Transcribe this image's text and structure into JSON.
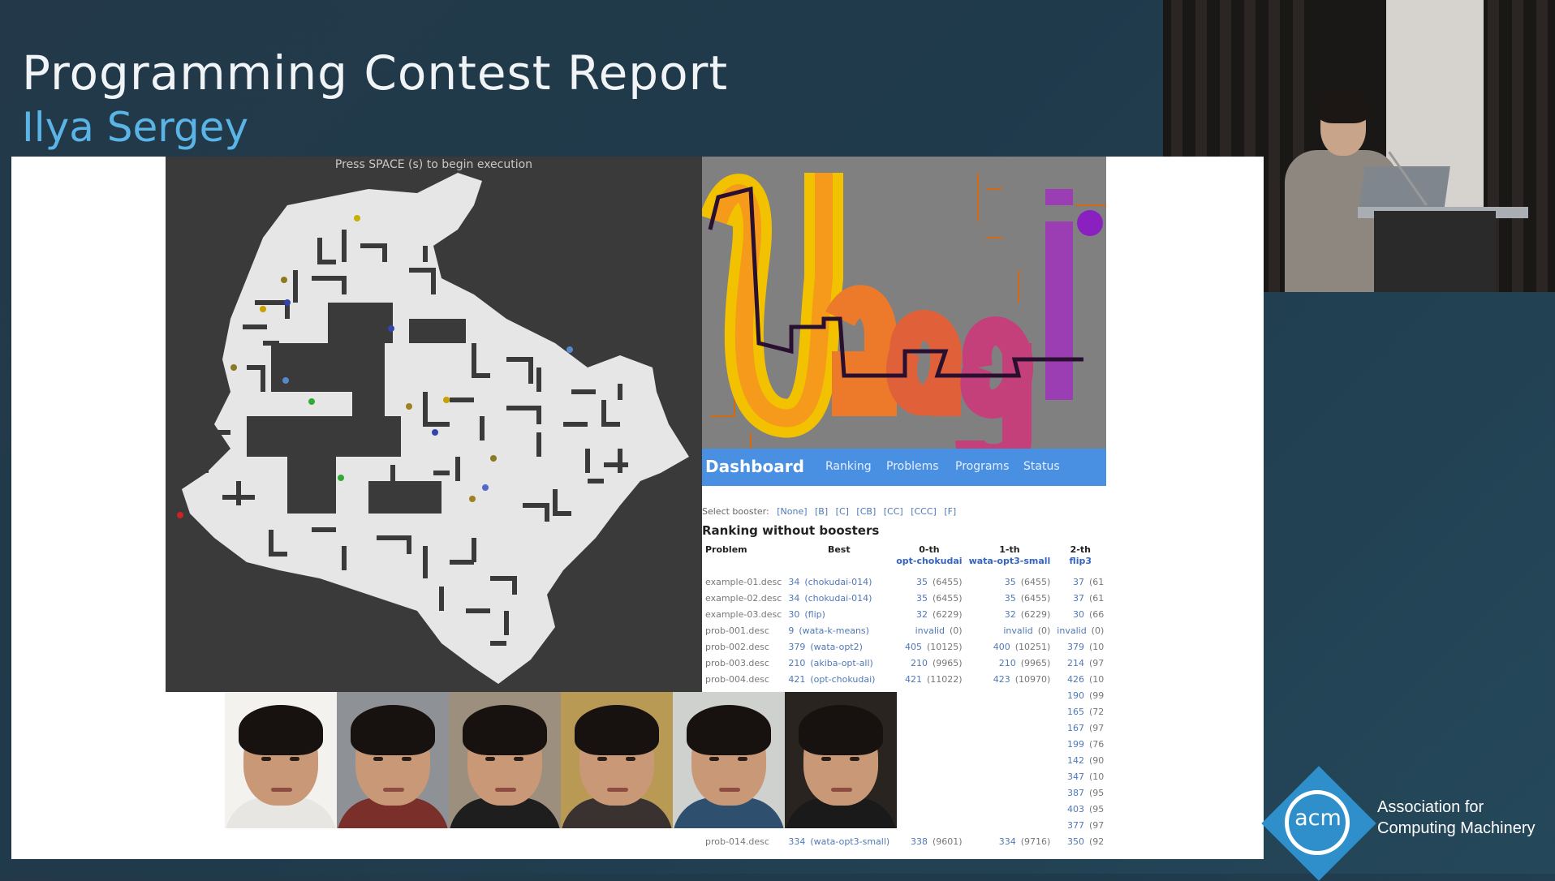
{
  "slide": {
    "title": "Programming Contest Report",
    "subtitle": "Ilya Sergey"
  },
  "maze_hint": "Press SPACE (s) to begin execution",
  "dashboard": {
    "brand": "Dashboard",
    "nav": [
      "Ranking",
      "Problems",
      "Programs",
      "Status"
    ],
    "booster_label": "Select booster:",
    "boosters": [
      "[None]",
      "[B]",
      "[C]",
      "[CB]",
      "[CC]",
      "[CCC]",
      "[F]"
    ],
    "section_title": "Ranking without boosters",
    "headers": {
      "problem": "Problem",
      "best": "Best",
      "c0": "0-th",
      "c0_team": "opt-chokudai",
      "c1": "1-th",
      "c1_team": "wata-opt3-small",
      "c2": "2-th",
      "c2_team": "flip3"
    },
    "rows": [
      {
        "p": "example-01.desc",
        "b": "34",
        "bt": "(chokudai-014)",
        "v0": "35",
        "s0": "(6455)",
        "v1": "35",
        "s1": "(6455)",
        "v2": "37",
        "s2": "(61"
      },
      {
        "p": "example-02.desc",
        "b": "34",
        "bt": "(chokudai-014)",
        "v0": "35",
        "s0": "(6455)",
        "v1": "35",
        "s1": "(6455)",
        "v2": "37",
        "s2": "(61"
      },
      {
        "p": "example-03.desc",
        "b": "30",
        "bt": "(flip)",
        "v0": "32",
        "s0": "(6229)",
        "v1": "32",
        "s1": "(6229)",
        "v2": "30",
        "s2": "(66"
      },
      {
        "p": "prob-001.desc",
        "b": "9",
        "bt": "(wata-k-means)",
        "v0": "invalid",
        "s0": "(0)",
        "v1": "invalid",
        "s1": "(0)",
        "v2": "invalid",
        "s2": "(0)"
      },
      {
        "p": "prob-002.desc",
        "b": "379",
        "bt": "(wata-opt2)",
        "v0": "405",
        "s0": "(10125)",
        "v1": "400",
        "s1": "(10251)",
        "v2": "379",
        "s2": "(10"
      },
      {
        "p": "prob-003.desc",
        "b": "210",
        "bt": "(akiba-opt-all)",
        "v0": "210",
        "s0": "(9965)",
        "v1": "210",
        "s1": "(9965)",
        "v2": "214",
        "s2": "(97"
      },
      {
        "p": "prob-004.desc",
        "b": "421",
        "bt": "(opt-chokudai)",
        "v0": "421",
        "s0": "(11022)",
        "v1": "423",
        "s1": "(10970)",
        "v2": "426",
        "s2": "(10"
      },
      {
        "p": "",
        "b": "",
        "bt": "",
        "v0": "",
        "s0": "",
        "v1": "",
        "s1": "",
        "v2": "190",
        "s2": "(99"
      },
      {
        "p": "",
        "b": "",
        "bt": "",
        "v0": "",
        "s0": "",
        "v1": "",
        "s1": "",
        "v2": "165",
        "s2": "(72"
      },
      {
        "p": "",
        "b": "",
        "bt": "",
        "v0": "",
        "s0": "",
        "v1": "",
        "s1": "",
        "v2": "167",
        "s2": "(97"
      },
      {
        "p": "",
        "b": "",
        "bt": "",
        "v0": "",
        "s0": "",
        "v1": "",
        "s1": "",
        "v2": "199",
        "s2": "(76"
      },
      {
        "p": "",
        "b": "",
        "bt": "",
        "v0": "",
        "s0": "",
        "v1": "",
        "s1": "",
        "v2": "142",
        "s2": "(90"
      },
      {
        "p": "",
        "b": "",
        "bt": "",
        "v0": "",
        "s0": "",
        "v1": "",
        "s1": "",
        "v2": "347",
        "s2": "(10"
      },
      {
        "p": "",
        "b": "",
        "bt": "",
        "v0": "",
        "s0": "",
        "v1": "",
        "s1": "",
        "v2": "387",
        "s2": "(95"
      },
      {
        "p": "",
        "b": "",
        "bt": "",
        "v0": "",
        "s0": "",
        "v1": "",
        "s1": "",
        "v2": "403",
        "s2": "(95"
      },
      {
        "p": "",
        "b": "",
        "bt": "",
        "v0": "",
        "s0": "",
        "v1": "",
        "s1": "",
        "v2": "377",
        "s2": "(97"
      },
      {
        "p": "prob-014.desc",
        "b": "334",
        "bt": "(wata-opt3-small)",
        "v0": "338",
        "s0": "(9601)",
        "v1": "334",
        "s1": "(9716)",
        "v2": "350",
        "s2": "(92"
      }
    ]
  },
  "photos": [
    {
      "shirt": "#e8e6e2",
      "bg": "#f4f2ef"
    },
    {
      "shirt": "#7a2f2a",
      "bg": "#8e9296"
    },
    {
      "shirt": "#1e1e1e",
      "bg": "#9c8f7d"
    },
    {
      "shirt": "#3a3230",
      "bg": "#b89a55"
    },
    {
      "shirt": "#2f4f6e",
      "bg": "#cfd1cf"
    },
    {
      "shirt": "#1a1a1a",
      "bg": "#2a2421"
    }
  ],
  "acm": {
    "logo_text": "acm",
    "name_line1": "Association for",
    "name_line2": "Computing Machinery",
    "logo_color": "#2e8fca"
  }
}
